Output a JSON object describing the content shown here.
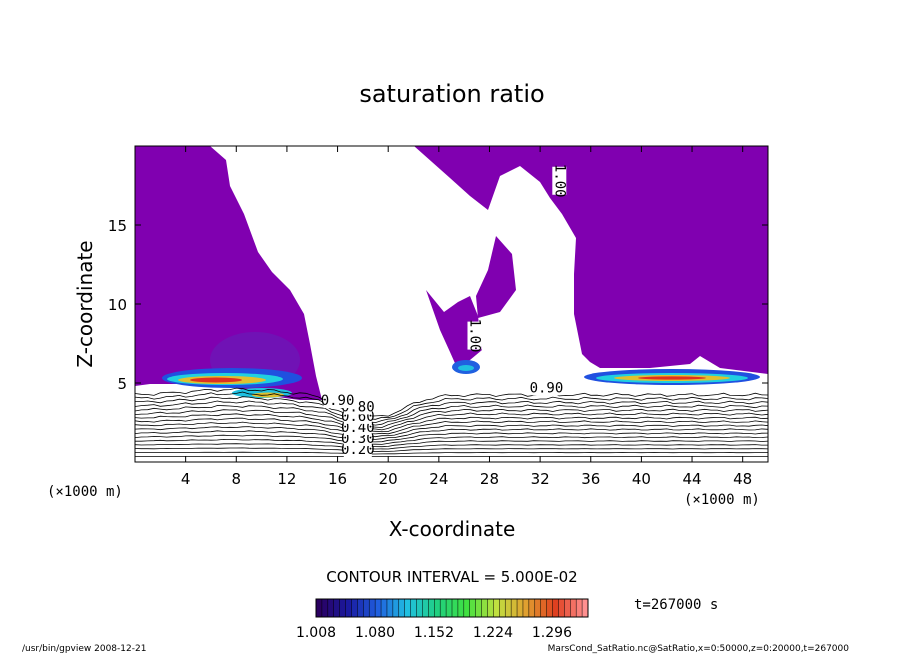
{
  "chart_data": {
    "type": "contour",
    "title": "saturation ratio",
    "xlabel": "X-coordinate",
    "ylabel": "Z-coordinate",
    "x_unit_left": "(×1000 m)",
    "x_unit_right": "(×1000 m)",
    "xlim": [
      0,
      50
    ],
    "ylim": [
      0,
      20
    ],
    "xticks": [
      4,
      8,
      12,
      16,
      20,
      24,
      28,
      32,
      36,
      40,
      44,
      48
    ],
    "yticks": [
      5,
      10,
      15
    ],
    "xtick_labels": [
      "4",
      "8",
      "12",
      "16",
      "20",
      "24",
      "28",
      "32",
      "36",
      "40",
      "44",
      "48"
    ],
    "ytick_labels": [
      "5",
      "10",
      "15"
    ],
    "contour_interval_text": "CONTOUR INTERVAL = 5.000E-02",
    "time_text": "t=267000 s",
    "colorbar": {
      "min": 1.008,
      "max": 1.34,
      "colors": [
        "#2a0060",
        "#1a1aa0",
        "#2060e0",
        "#20c0e0",
        "#20d080",
        "#40e040",
        "#c0e040",
        "#e0a030",
        "#e04020",
        "#ff9090"
      ],
      "labels": [
        "1.008",
        "1.080",
        "1.152",
        "1.224",
        "1.296"
      ]
    },
    "contour_levels": [
      0.2,
      0.25,
      0.3,
      0.35,
      0.4,
      0.45,
      0.5,
      0.55,
      0.6,
      0.65,
      0.7,
      0.75,
      0.8,
      0.85,
      0.9,
      0.95,
      1.0
    ],
    "contour_labels": [
      {
        "text": "0.20",
        "x": 17.6,
        "y": 0.5
      },
      {
        "text": "0.30",
        "x": 17.6,
        "y": 1.2
      },
      {
        "text": "0.40",
        "x": 17.6,
        "y": 1.9
      },
      {
        "text": "0.60",
        "x": 17.6,
        "y": 2.6
      },
      {
        "text": "0.80",
        "x": 17.6,
        "y": 3.2
      },
      {
        "text": "0.90",
        "x": 16.0,
        "y": 3.6
      },
      {
        "text": "0.90",
        "x": 32.5,
        "y": 4.4
      },
      {
        "text": "1.00",
        "x": 26.5,
        "y": 8.0
      },
      {
        "text": "1.00",
        "x": 33.2,
        "y": 17.8
      }
    ],
    "supersaturated_region_color": "#8000b0",
    "footer_left": "/usr/bin/gpview   2008-12-21",
    "footer_right": "MarsCond_SatRatio.nc@SatRatio,x=0:50000,z=0:20000,t=267000"
  }
}
